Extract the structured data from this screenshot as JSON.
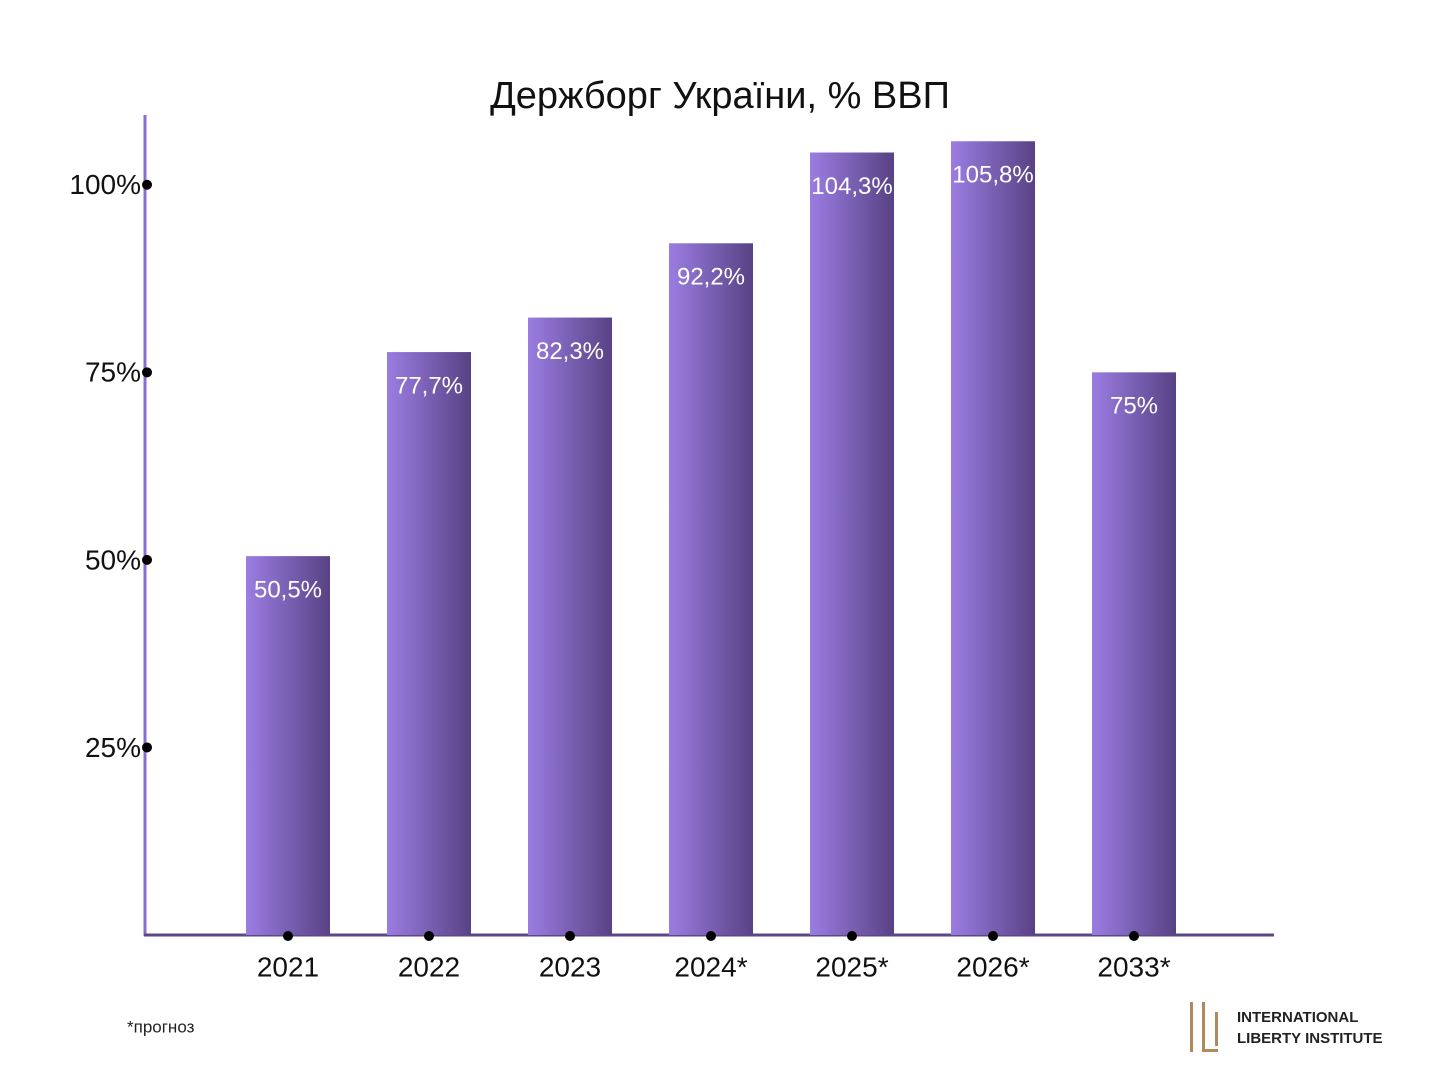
{
  "chart_data": {
    "type": "bar",
    "title": "Держборг України, % ВВП",
    "categories": [
      "2021",
      "2022",
      "2023",
      "2024*",
      "2025*",
      "2026*",
      "2033*"
    ],
    "values": [
      50.5,
      77.7,
      82.3,
      92.2,
      104.3,
      105.8,
      75
    ],
    "value_labels": [
      "50,5%",
      "77,7%",
      "82,3%",
      "92,2%",
      "104,3%",
      "105,8%",
      "75%"
    ],
    "gradient": [
      "#9b7de2",
      "#584284"
    ],
    "ylim": [
      0,
      109.3
    ],
    "yticks": [
      {
        "value": 25,
        "label": "25%"
      },
      {
        "value": 50,
        "label": "50%"
      },
      {
        "value": 75,
        "label": "75%"
      },
      {
        "value": 100,
        "label": "100%"
      }
    ],
    "grid": false,
    "footnote": "*прогноз",
    "logo": [
      "INTERNATIONAL",
      "LIBERTY INSTITUTE"
    ]
  }
}
